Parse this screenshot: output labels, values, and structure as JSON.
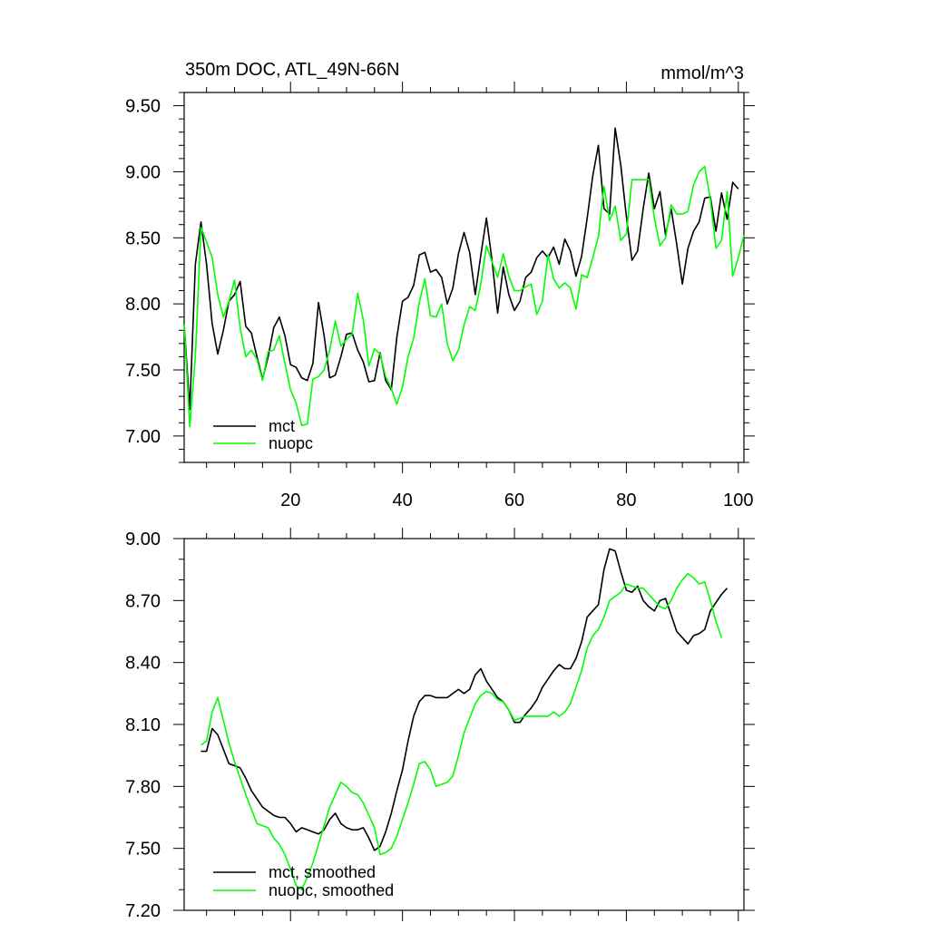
{
  "chart_data": [
    {
      "type": "line",
      "title": "350m DOC, ATL_49N-66N",
      "units": "mmol/m^3",
      "xlim": [
        1,
        101
      ],
      "ylim": [
        6.8,
        9.6
      ],
      "x_ticks": [
        20,
        40,
        60,
        80,
        100
      ],
      "x_tick_labels": [
        "20",
        "40",
        "60",
        "80",
        "100"
      ],
      "y_ticks": [
        7.0,
        7.5,
        8.0,
        8.5,
        9.0,
        9.5
      ],
      "y_tick_labels": [
        "7.00",
        "7.50",
        "8.00",
        "8.50",
        "9.00",
        "9.50"
      ],
      "legend_position": "bottom-left",
      "x_start": 1,
      "series": [
        {
          "name": "mct",
          "color": "#000000",
          "values": [
            7.85,
            7.2,
            8.3,
            8.62,
            8.3,
            7.85,
            7.62,
            7.8,
            8.02,
            8.07,
            8.17,
            7.83,
            7.78,
            7.6,
            7.43,
            7.6,
            7.82,
            7.9,
            7.76,
            7.54,
            7.52,
            7.44,
            7.42,
            7.55,
            8.01,
            7.76,
            7.44,
            7.46,
            7.6,
            7.77,
            7.78,
            7.65,
            7.56,
            7.41,
            7.42,
            7.63,
            7.42,
            7.35,
            7.75,
            8.02,
            8.05,
            8.14,
            8.37,
            8.39,
            8.24,
            8.26,
            8.2,
            8.0,
            8.12,
            8.38,
            8.54,
            8.39,
            8.07,
            8.37,
            8.65,
            8.33,
            7.93,
            8.28,
            8.07,
            7.95,
            8.02,
            8.2,
            8.24,
            8.35,
            8.4,
            8.35,
            8.43,
            8.3,
            8.49,
            8.4,
            8.21,
            8.36,
            8.65,
            8.97,
            9.2,
            8.72,
            8.68,
            9.33,
            9.05,
            8.66,
            8.33,
            8.4,
            8.72,
            8.99,
            8.72,
            8.85,
            8.52,
            8.72,
            8.45,
            8.15,
            8.42,
            8.55,
            8.62,
            8.8,
            8.81,
            8.55,
            8.84,
            8.64,
            8.92,
            8.87
          ]
        },
        {
          "name": "nuopc",
          "color": "#00ff00",
          "values": [
            7.85,
            7.07,
            7.6,
            8.58,
            8.47,
            8.35,
            8.07,
            7.9,
            8.02,
            8.18,
            7.82,
            7.6,
            7.65,
            7.58,
            7.42,
            7.64,
            7.65,
            7.76,
            7.55,
            7.35,
            7.25,
            7.08,
            7.09,
            7.43,
            7.45,
            7.5,
            7.65,
            7.87,
            7.68,
            7.73,
            7.77,
            8.08,
            7.88,
            7.53,
            7.66,
            7.62,
            7.45,
            7.36,
            7.24,
            7.37,
            7.6,
            7.74,
            8.01,
            8.19,
            7.91,
            7.9,
            8.0,
            7.7,
            7.57,
            7.65,
            7.84,
            7.98,
            7.95,
            8.15,
            8.44,
            8.32,
            8.2,
            8.38,
            8.21,
            8.1,
            8.1,
            8.13,
            8.15,
            7.92,
            8.02,
            8.37,
            8.19,
            8.12,
            8.16,
            8.12,
            7.96,
            8.22,
            8.2,
            8.35,
            8.51,
            8.89,
            8.63,
            8.74,
            8.48,
            8.53,
            8.94,
            8.94,
            8.94,
            8.94,
            8.65,
            8.44,
            8.5,
            8.75,
            8.68,
            8.68,
            8.7,
            8.9,
            9.0,
            9.04,
            8.79,
            8.42,
            8.48,
            8.85,
            8.21,
            8.35,
            8.52
          ]
        }
      ]
    },
    {
      "type": "line",
      "xlim": [
        1,
        101
      ],
      "ylim": [
        7.2,
        9.0
      ],
      "x_ticks": [
        20,
        40,
        60,
        80,
        100
      ],
      "y_ticks": [
        7.2,
        7.5,
        7.8,
        8.1,
        8.4,
        8.7,
        9.0
      ],
      "y_tick_labels": [
        "7.20",
        "7.50",
        "7.80",
        "8.10",
        "8.40",
        "8.70",
        "9.00"
      ],
      "legend_position": "bottom-left",
      "x_start": 4,
      "series": [
        {
          "name": "mct, smoothed",
          "color": "#000000",
          "values": [
            7.97,
            7.97,
            8.08,
            8.05,
            7.98,
            7.91,
            7.9,
            7.89,
            7.84,
            7.78,
            7.74,
            7.7,
            7.68,
            7.66,
            7.65,
            7.65,
            7.62,
            7.58,
            7.6,
            7.59,
            7.58,
            7.57,
            7.59,
            7.64,
            7.67,
            7.62,
            7.6,
            7.59,
            7.59,
            7.6,
            7.55,
            7.49,
            7.51,
            7.58,
            7.67,
            7.78,
            7.88,
            8.02,
            8.14,
            8.21,
            8.24,
            8.24,
            8.23,
            8.23,
            8.23,
            8.25,
            8.27,
            8.25,
            8.27,
            8.34,
            8.37,
            8.31,
            8.27,
            8.23,
            8.21,
            8.17,
            8.11,
            8.11,
            8.15,
            8.18,
            8.22,
            8.28,
            8.32,
            8.36,
            8.39,
            8.37,
            8.37,
            8.42,
            8.5,
            8.62,
            8.65,
            8.68,
            8.85,
            8.95,
            8.94,
            8.84,
            8.75,
            8.74,
            8.77,
            8.7,
            8.67,
            8.65,
            8.7,
            8.71,
            8.63,
            8.55,
            8.52,
            8.49,
            8.53,
            8.54,
            8.56,
            8.65,
            8.69,
            8.73,
            8.76
          ]
        },
        {
          "name": "nuopc, smoothed",
          "color": "#00ff00",
          "values": [
            8.0,
            8.02,
            8.16,
            8.23,
            8.12,
            8.01,
            7.92,
            7.84,
            7.76,
            7.69,
            7.62,
            7.61,
            7.6,
            7.55,
            7.52,
            7.47,
            7.4,
            7.32,
            7.3,
            7.36,
            7.43,
            7.52,
            7.61,
            7.7,
            7.76,
            7.82,
            7.8,
            7.77,
            7.76,
            7.72,
            7.66,
            7.6,
            7.47,
            7.48,
            7.5,
            7.56,
            7.64,
            7.72,
            7.81,
            7.91,
            7.92,
            7.88,
            7.8,
            7.81,
            7.82,
            7.85,
            7.95,
            8.06,
            8.13,
            8.2,
            8.24,
            8.26,
            8.25,
            8.22,
            8.21,
            8.17,
            8.12,
            8.13,
            8.14,
            8.14,
            8.14,
            8.14,
            8.14,
            8.16,
            8.14,
            8.16,
            8.2,
            8.28,
            8.36,
            8.47,
            8.53,
            8.56,
            8.62,
            8.7,
            8.72,
            8.74,
            8.78,
            8.77,
            8.76,
            8.76,
            8.73,
            8.7,
            8.67,
            8.66,
            8.7,
            8.76,
            8.8,
            8.83,
            8.81,
            8.78,
            8.79,
            8.7,
            8.6,
            8.52
          ]
        }
      ]
    }
  ]
}
